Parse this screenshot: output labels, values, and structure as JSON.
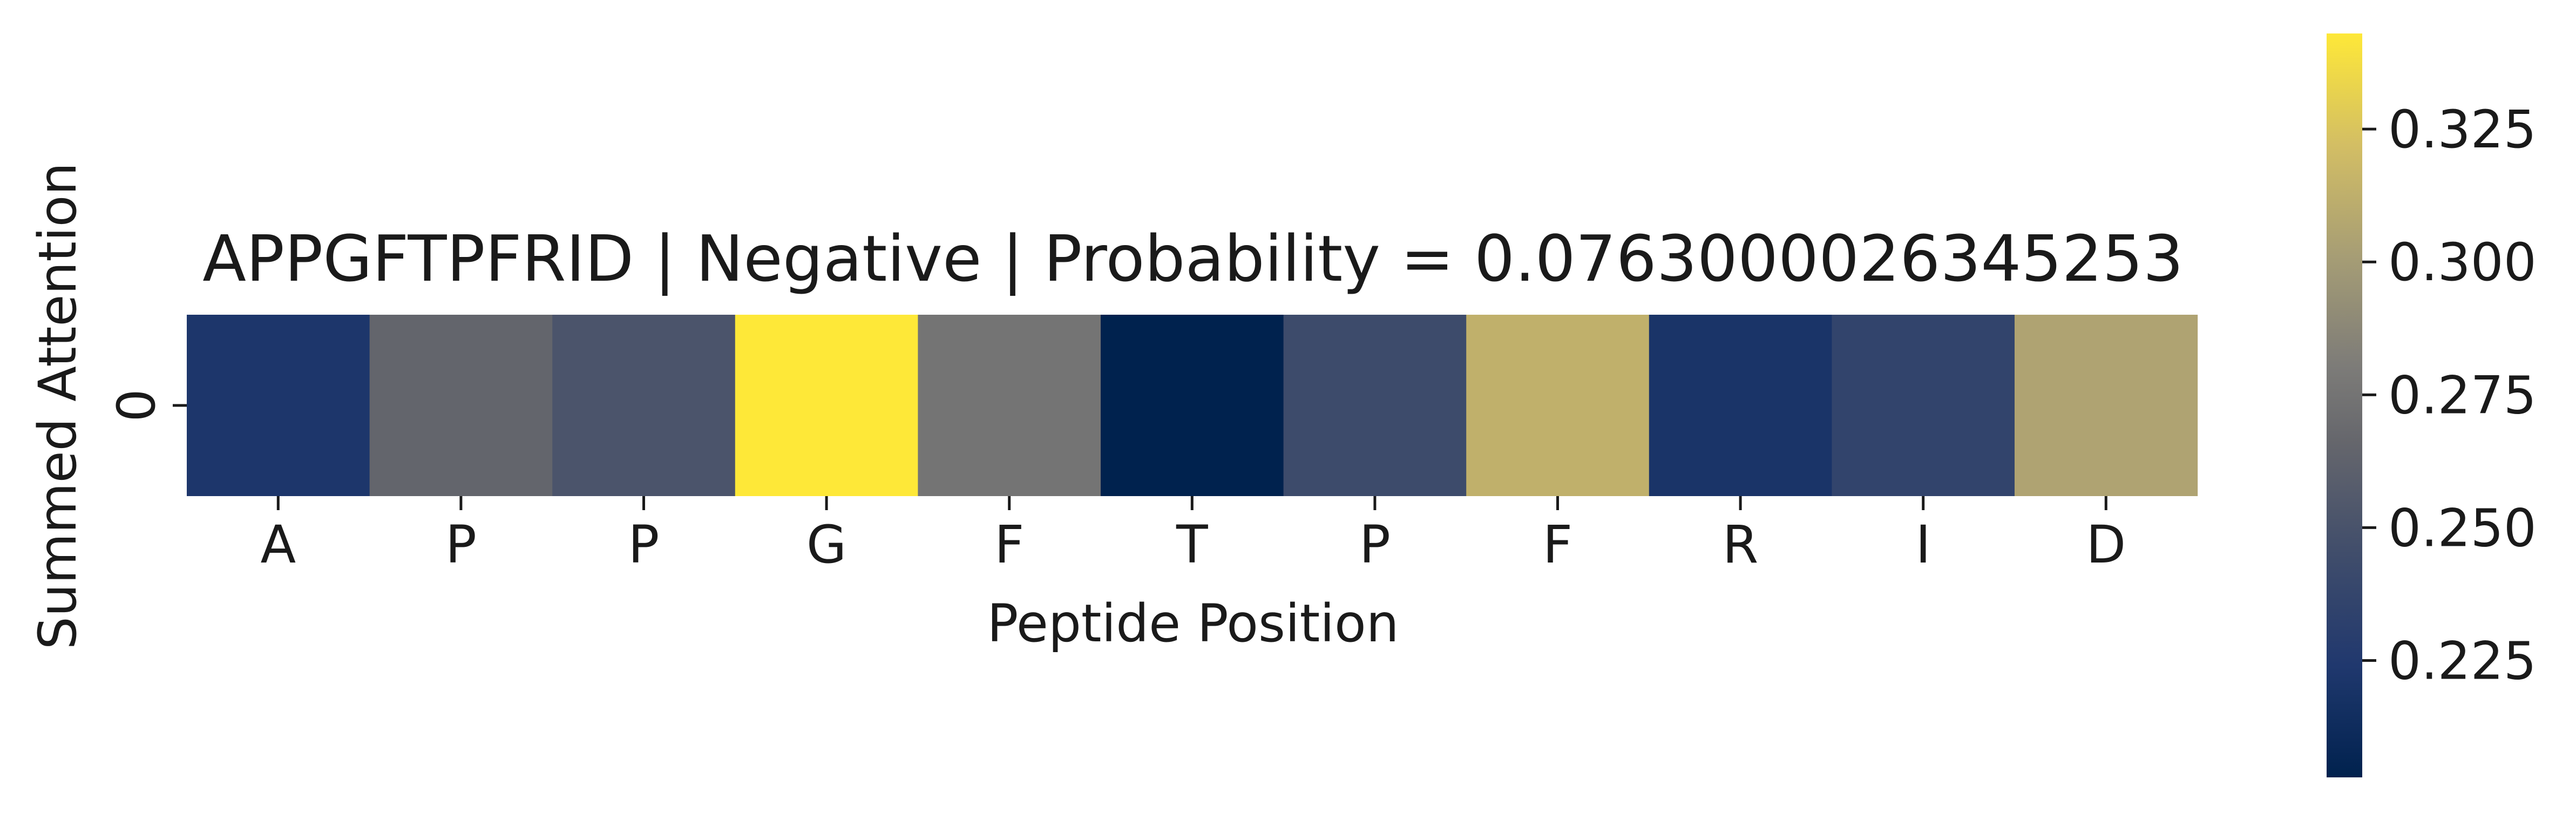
{
  "chart_data": {
    "type": "heatmap",
    "title": "APPGFTPFRID | Negative | Probability = 0.0763000026345253",
    "xlabel": "Peptide Position",
    "ylabel": "Summed Attention",
    "x_categories": [
      "A",
      "P",
      "P",
      "G",
      "F",
      "T",
      "P",
      "F",
      "R",
      "I",
      "D"
    ],
    "y_categories": [
      "0"
    ],
    "values": [
      [
        0.222,
        0.265,
        0.251,
        0.343,
        0.275,
        0.203,
        0.243,
        0.313,
        0.22,
        0.236,
        0.305
      ]
    ],
    "colormap": "cividis",
    "vmin": 0.203,
    "vmax": 0.343,
    "colorbar": {
      "ticks": [
        0.225,
        0.25,
        0.275,
        0.3,
        0.325
      ],
      "tick_labels": [
        "0.225",
        "0.250",
        "0.275",
        "0.300",
        "0.325"
      ]
    }
  }
}
